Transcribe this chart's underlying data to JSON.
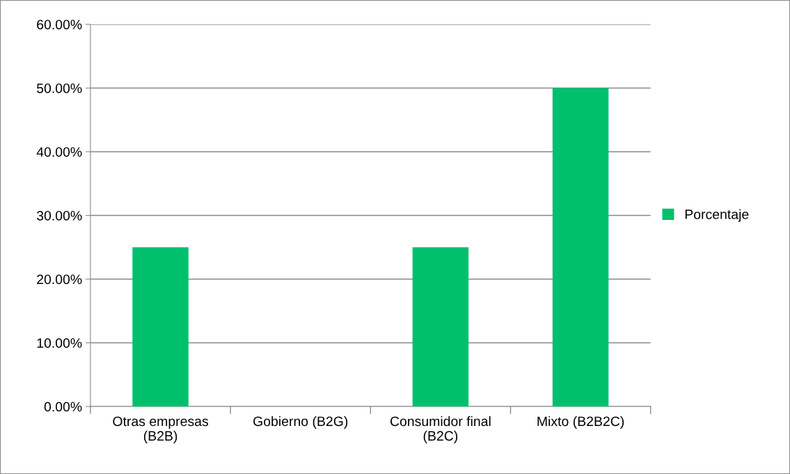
{
  "chart_data": {
    "type": "bar",
    "categories": [
      "Otras empresas (B2B)",
      "Gobierno (B2G)",
      "Consumidor final (B2C)",
      "Mixto (B2B2C)"
    ],
    "series": [
      {
        "name": "Porcentaje",
        "color": "#00c06e",
        "values": [
          25,
          0,
          25,
          50
        ]
      }
    ],
    "ylim": [
      0,
      60
    ],
    "yticks": [
      {
        "value": 0,
        "label": "0.00%"
      },
      {
        "value": 10,
        "label": "10.00%"
      },
      {
        "value": 20,
        "label": "20.00%"
      },
      {
        "value": 30,
        "label": "30.00%"
      },
      {
        "value": 40,
        "label": "40.00%"
      },
      {
        "value": 50,
        "label": "50.00%"
      },
      {
        "value": 60,
        "label": "60.00%"
      }
    ],
    "grid": "y",
    "legend": "right"
  }
}
